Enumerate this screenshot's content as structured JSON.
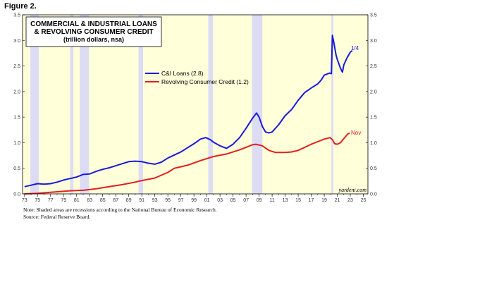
{
  "figure_label": "Figure 2.",
  "notes": {
    "line1": "Note: Shaded areas are recessions according to the National Bureau of Economic Research.",
    "line2": "Source: Federal Reserve Board."
  },
  "watermark": "yardeni.com",
  "colors": {
    "plot_bg": "#ffffd9",
    "recession": "#dcdcf5",
    "ci_line": "#1a1adc",
    "rc_line": "#e02020",
    "frame": "#000000"
  },
  "chart_data": {
    "type": "line",
    "title": "COMMERCIAL & INDUSTRIAL LOANS",
    "title_line2": "& REVOLVING CONSUMER CREDIT",
    "subtitle": "(trillion dollars, nsa)",
    "ylim": [
      0,
      3.5
    ],
    "xlim": [
      1972.7,
      2025.7
    ],
    "y_ticks": [
      "0.0",
      "0.5",
      "1.0",
      "1.5",
      "2.0",
      "2.5",
      "3.0",
      "3.5"
    ],
    "x_tick_labels": [
      "73",
      "75",
      "77",
      "79",
      "81",
      "83",
      "85",
      "87",
      "89",
      "91",
      "93",
      "95",
      "97",
      "99",
      "01",
      "03",
      "05",
      "07",
      "09",
      "11",
      "13",
      "15",
      "17",
      "19",
      "21",
      "23",
      "25"
    ],
    "x_tick_years": [
      1973,
      1975,
      1977,
      1979,
      1981,
      1983,
      1985,
      1987,
      1989,
      1991,
      1993,
      1995,
      1997,
      1999,
      2001,
      2003,
      2005,
      2007,
      2009,
      2011,
      2013,
      2015,
      2017,
      2019,
      2021,
      2023,
      2025
    ],
    "grid": false,
    "legend_position": "upper-center",
    "recessions": [
      [
        1973.9,
        1975.2
      ],
      [
        1980.0,
        1980.5
      ],
      [
        1981.5,
        1982.9
      ],
      [
        1990.5,
        1991.2
      ],
      [
        2001.2,
        2001.9
      ],
      [
        2007.9,
        2009.5
      ],
      [
        2020.1,
        2020.4
      ]
    ],
    "series": [
      {
        "name": "C&I Loans (2.8)",
        "end_label": "1/4",
        "points": [
          [
            1973.0,
            0.14
          ],
          [
            1974.0,
            0.17
          ],
          [
            1975.0,
            0.2
          ],
          [
            1976.0,
            0.19
          ],
          [
            1977.0,
            0.2
          ],
          [
            1978.0,
            0.23
          ],
          [
            1979.0,
            0.27
          ],
          [
            1980.0,
            0.3
          ],
          [
            1981.0,
            0.33
          ],
          [
            1982.0,
            0.38
          ],
          [
            1983.0,
            0.39
          ],
          [
            1984.0,
            0.44
          ],
          [
            1985.0,
            0.48
          ],
          [
            1986.0,
            0.51
          ],
          [
            1987.0,
            0.55
          ],
          [
            1988.0,
            0.59
          ],
          [
            1989.0,
            0.63
          ],
          [
            1990.0,
            0.64
          ],
          [
            1991.0,
            0.63
          ],
          [
            1992.0,
            0.6
          ],
          [
            1993.0,
            0.58
          ],
          [
            1994.0,
            0.62
          ],
          [
            1995.0,
            0.7
          ],
          [
            1996.0,
            0.76
          ],
          [
            1997.0,
            0.82
          ],
          [
            1998.0,
            0.9
          ],
          [
            1999.0,
            0.98
          ],
          [
            2000.0,
            1.07
          ],
          [
            2000.8,
            1.1
          ],
          [
            2001.5,
            1.06
          ],
          [
            2002.0,
            1.01
          ],
          [
            2003.0,
            0.94
          ],
          [
            2004.0,
            0.89
          ],
          [
            2005.0,
            0.97
          ],
          [
            2006.0,
            1.1
          ],
          [
            2007.0,
            1.28
          ],
          [
            2008.0,
            1.48
          ],
          [
            2008.6,
            1.58
          ],
          [
            2009.0,
            1.5
          ],
          [
            2009.5,
            1.32
          ],
          [
            2010.0,
            1.21
          ],
          [
            2010.5,
            1.19
          ],
          [
            2011.0,
            1.21
          ],
          [
            2012.0,
            1.35
          ],
          [
            2013.0,
            1.53
          ],
          [
            2014.0,
            1.65
          ],
          [
            2015.0,
            1.83
          ],
          [
            2016.0,
            1.98
          ],
          [
            2017.0,
            2.07
          ],
          [
            2018.0,
            2.15
          ],
          [
            2018.5,
            2.22
          ],
          [
            2019.0,
            2.32
          ],
          [
            2019.8,
            2.36
          ],
          [
            2020.1,
            2.35
          ],
          [
            2020.25,
            3.1
          ],
          [
            2020.5,
            2.94
          ],
          [
            2020.8,
            2.72
          ],
          [
            2021.0,
            2.63
          ],
          [
            2021.5,
            2.45
          ],
          [
            2021.8,
            2.38
          ],
          [
            2022.0,
            2.52
          ],
          [
            2022.5,
            2.66
          ],
          [
            2023.0,
            2.77
          ],
          [
            2023.3,
            2.8
          ]
        ]
      },
      {
        "name": "Revolving Consumer Credit (1.2)",
        "end_label": "Nov",
        "points": [
          [
            1973.0,
            0.0
          ],
          [
            1975.0,
            0.01
          ],
          [
            1977.0,
            0.03
          ],
          [
            1979.0,
            0.05
          ],
          [
            1980.0,
            0.06
          ],
          [
            1982.0,
            0.07
          ],
          [
            1984.0,
            0.1
          ],
          [
            1986.0,
            0.14
          ],
          [
            1988.0,
            0.18
          ],
          [
            1990.0,
            0.23
          ],
          [
            1991.0,
            0.26
          ],
          [
            1993.0,
            0.31
          ],
          [
            1995.0,
            0.42
          ],
          [
            1996.0,
            0.5
          ],
          [
            1998.0,
            0.56
          ],
          [
            2000.0,
            0.65
          ],
          [
            2002.0,
            0.73
          ],
          [
            2004.0,
            0.78
          ],
          [
            2006.0,
            0.86
          ],
          [
            2008.0,
            0.96
          ],
          [
            2008.5,
            0.97
          ],
          [
            2009.5,
            0.94
          ],
          [
            2010.5,
            0.85
          ],
          [
            2011.5,
            0.81
          ],
          [
            2013.0,
            0.81
          ],
          [
            2014.0,
            0.82
          ],
          [
            2015.0,
            0.85
          ],
          [
            2016.0,
            0.91
          ],
          [
            2017.0,
            0.97
          ],
          [
            2018.0,
            1.02
          ],
          [
            2019.0,
            1.07
          ],
          [
            2019.9,
            1.1
          ],
          [
            2020.3,
            1.05
          ],
          [
            2020.6,
            0.98
          ],
          [
            2021.0,
            0.97
          ],
          [
            2021.5,
            1.0
          ],
          [
            2022.0,
            1.08
          ],
          [
            2022.6,
            1.17
          ],
          [
            2022.9,
            1.19
          ]
        ]
      }
    ]
  }
}
